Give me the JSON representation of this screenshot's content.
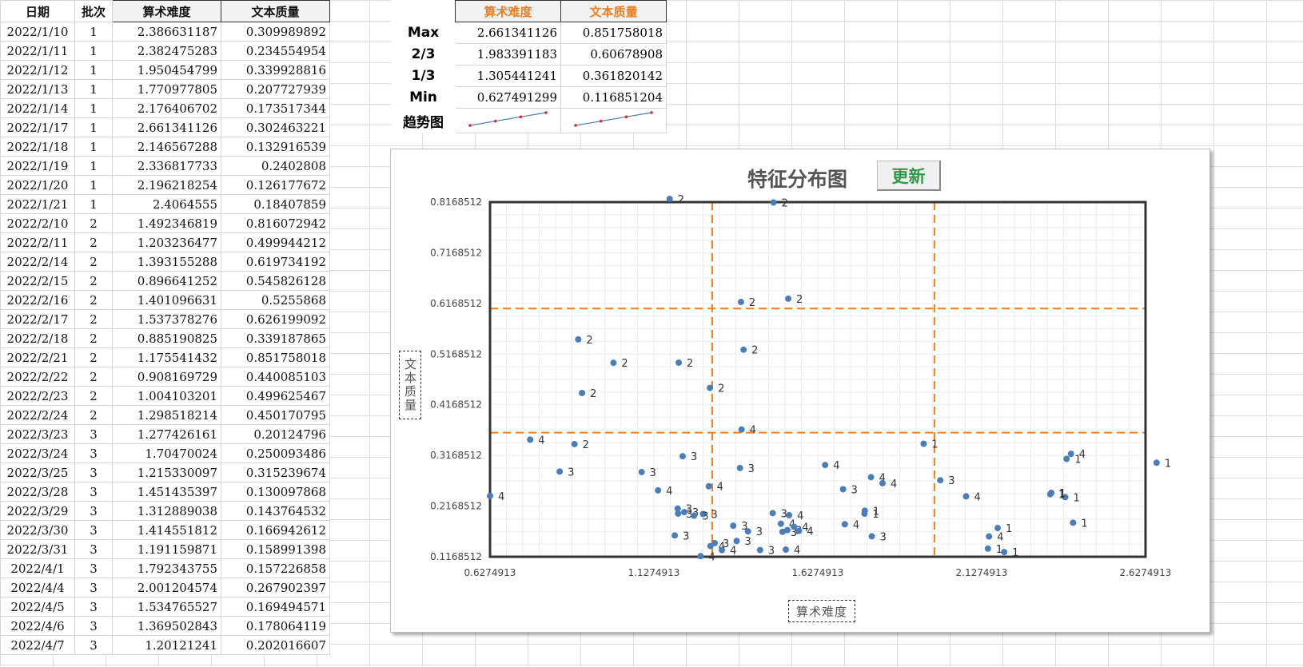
{
  "table": {
    "headers": [
      "日期",
      "批次",
      "算术难度",
      "文本质量"
    ],
    "rows": [
      [
        "2022/1/10",
        "1",
        "2.386631187",
        "0.309989892"
      ],
      [
        "2022/1/11",
        "1",
        "2.382475283",
        "0.234554954"
      ],
      [
        "2022/1/12",
        "1",
        "1.950454799",
        "0.339928816"
      ],
      [
        "2022/1/13",
        "1",
        "1.770977805",
        "0.207727939"
      ],
      [
        "2022/1/14",
        "1",
        "2.176406702",
        "0.173517344"
      ],
      [
        "2022/1/17",
        "1",
        "2.661341126",
        "0.302463221"
      ],
      [
        "2022/1/18",
        "1",
        "2.146567288",
        "0.132916539"
      ],
      [
        "2022/1/19",
        "1",
        "2.336817733",
        "0.2402808"
      ],
      [
        "2022/1/20",
        "1",
        "2.196218254",
        "0.126177672"
      ],
      [
        "2022/1/21",
        "1",
        "2.4064555",
        "0.18407859"
      ],
      [
        "2022/2/10",
        "2",
        "1.492346819",
        "0.816072942"
      ],
      [
        "2022/2/11",
        "2",
        "1.203236477",
        "0.499944212"
      ],
      [
        "2022/2/14",
        "2",
        "1.393155288",
        "0.619734192"
      ],
      [
        "2022/2/15",
        "2",
        "0.896641252",
        "0.545826128"
      ],
      [
        "2022/2/16",
        "2",
        "1.401096631",
        "0.5255868"
      ],
      [
        "2022/2/17",
        "2",
        "1.537378276",
        "0.626199092"
      ],
      [
        "2022/2/18",
        "2",
        "0.885190825",
        "0.339187865"
      ],
      [
        "2022/2/21",
        "2",
        "1.175541432",
        "0.851758018"
      ],
      [
        "2022/2/22",
        "2",
        "0.908169729",
        "0.440085103"
      ],
      [
        "2022/2/23",
        "2",
        "1.004103201",
        "0.499625467"
      ],
      [
        "2022/2/24",
        "2",
        "1.298518214",
        "0.450170795"
      ],
      [
        "2022/3/23",
        "3",
        "1.277426161",
        "0.20124796"
      ],
      [
        "2022/3/24",
        "3",
        "1.70470024",
        "0.250093486"
      ],
      [
        "2022/3/25",
        "3",
        "1.215330097",
        "0.315239674"
      ],
      [
        "2022/3/28",
        "3",
        "1.451435397",
        "0.130097868"
      ],
      [
        "2022/3/29",
        "3",
        "1.312889038",
        "0.143764532"
      ],
      [
        "2022/3/30",
        "3",
        "1.414551812",
        "0.166942612"
      ],
      [
        "2022/3/31",
        "3",
        "1.191159871",
        "0.158991398"
      ],
      [
        "2022/4/1",
        "3",
        "1.792343755",
        "0.157226858"
      ],
      [
        "2022/4/4",
        "3",
        "2.001204574",
        "0.267902397"
      ],
      [
        "2022/4/5",
        "3",
        "1.534765527",
        "0.169494571"
      ],
      [
        "2022/4/6",
        "3",
        "1.369502843",
        "0.178064119"
      ],
      [
        "2022/4/7",
        "3",
        "1.20121241",
        "0.202016607"
      ]
    ]
  },
  "stats": {
    "headers": [
      "算术难度",
      "文本质量"
    ],
    "rows": [
      {
        "label": "Max",
        "a": "2.661341126",
        "b": "0.851758018"
      },
      {
        "label": "2/3",
        "a": "1.983391183",
        "b": "0.60678908"
      },
      {
        "label": "1/3",
        "a": "1.305441241",
        "b": "0.361820142"
      },
      {
        "label": "Min",
        "a": "0.627491299",
        "b": "0.116851204"
      }
    ],
    "trend_label": "趋势图",
    "trend_a": [
      0.627491299,
      1.305441241,
      1.983391183,
      2.661341126
    ],
    "trend_b": [
      0.116851204,
      0.361820142,
      0.60678908,
      0.851758018
    ]
  },
  "chart": {
    "title": "特征分布图",
    "update_button": "更新",
    "xlabel": "算术难度",
    "ylabel": "文本质量"
  },
  "colors": {
    "point": "#4a7ebb",
    "threshold": "#ee7f1c",
    "header_orange": "#ee7f1c",
    "update_green": "#2e9a4b"
  },
  "chart_data": {
    "type": "scatter",
    "title": "特征分布图",
    "xlabel": "算术难度",
    "ylabel": "文本质量",
    "xlim": [
      0.6274913,
      2.6274913
    ],
    "ylim": [
      0.1168512,
      0.8168512
    ],
    "x_ticks": [
      "0.6274913",
      "1.1274913",
      "1.6274913",
      "2.1274913",
      "2.6274913"
    ],
    "y_ticks": [
      "0.1168512",
      "0.2168512",
      "0.3168512",
      "0.4168512",
      "0.5168512",
      "0.6168512",
      "0.7168512",
      "0.8168512"
    ],
    "x_thresholds": [
      1.305441241,
      1.983391183
    ],
    "y_thresholds": [
      0.361820142,
      0.60678908
    ],
    "grid": true,
    "points": [
      {
        "x": 2.386631187,
        "y": 0.309989892,
        "label": "1"
      },
      {
        "x": 2.382475283,
        "y": 0.234554954,
        "label": "1"
      },
      {
        "x": 1.950454799,
        "y": 0.339928816,
        "label": "1"
      },
      {
        "x": 1.770977805,
        "y": 0.207727939,
        "label": "1"
      },
      {
        "x": 2.176406702,
        "y": 0.173517344,
        "label": "1"
      },
      {
        "x": 2.661341126,
        "y": 0.302463221,
        "label": "1"
      },
      {
        "x": 2.146567288,
        "y": 0.132916539,
        "label": "1"
      },
      {
        "x": 2.336817733,
        "y": 0.2402808,
        "label": "1"
      },
      {
        "x": 2.196218254,
        "y": 0.126177672,
        "label": "1"
      },
      {
        "x": 2.4064555,
        "y": 0.18407859,
        "label": "1"
      },
      {
        "x": 1.492346819,
        "y": 0.816072942,
        "label": "2"
      },
      {
        "x": 1.203236477,
        "y": 0.499944212,
        "label": "2"
      },
      {
        "x": 1.393155288,
        "y": 0.619734192,
        "label": "2"
      },
      {
        "x": 0.896641252,
        "y": 0.545826128,
        "label": "2"
      },
      {
        "x": 1.401096631,
        "y": 0.5255868,
        "label": "2"
      },
      {
        "x": 1.537378276,
        "y": 0.626199092,
        "label": "2"
      },
      {
        "x": 0.885190825,
        "y": 0.339187865,
        "label": "2"
      },
      {
        "x": 1.175541432,
        "y": 0.851758018,
        "label": "2"
      },
      {
        "x": 0.908169729,
        "y": 0.440085103,
        "label": "2"
      },
      {
        "x": 1.004103201,
        "y": 0.499625467,
        "label": "2"
      },
      {
        "x": 1.298518214,
        "y": 0.450170795,
        "label": "2"
      },
      {
        "x": 1.277426161,
        "y": 0.20124796,
        "label": "3"
      },
      {
        "x": 1.70470024,
        "y": 0.250093486,
        "label": "3"
      },
      {
        "x": 1.215330097,
        "y": 0.315239674,
        "label": "3"
      },
      {
        "x": 1.451435397,
        "y": 0.130097868,
        "label": "3"
      },
      {
        "x": 1.312889038,
        "y": 0.143764532,
        "label": "3"
      },
      {
        "x": 1.414551812,
        "y": 0.166942612,
        "label": "3"
      },
      {
        "x": 1.191159871,
        "y": 0.158991398,
        "label": "3"
      },
      {
        "x": 1.792343755,
        "y": 0.157226858,
        "label": "3"
      },
      {
        "x": 2.001204574,
        "y": 0.267902397,
        "label": "3"
      },
      {
        "x": 1.534765527,
        "y": 0.169494571,
        "label": "3"
      },
      {
        "x": 1.369502843,
        "y": 0.178064119,
        "label": "3"
      },
      {
        "x": 1.20121241,
        "y": 0.202016607,
        "label": "3"
      },
      {
        "x": 0.627491299,
        "y": 0.237,
        "label": "4"
      },
      {
        "x": 0.75,
        "y": 0.348,
        "label": "4"
      },
      {
        "x": 1.14,
        "y": 0.248,
        "label": "4"
      },
      {
        "x": 1.2,
        "y": 0.212,
        "label": "3"
      },
      {
        "x": 1.22,
        "y": 0.205,
        "label": "3"
      },
      {
        "x": 1.25,
        "y": 0.198,
        "label": "3"
      },
      {
        "x": 1.09,
        "y": 0.284,
        "label": "3"
      },
      {
        "x": 0.84,
        "y": 0.285,
        "label": "3"
      },
      {
        "x": 1.295,
        "y": 0.256,
        "label": "4"
      },
      {
        "x": 1.395,
        "y": 0.368,
        "label": "4"
      },
      {
        "x": 1.39,
        "y": 0.292,
        "label": "3"
      },
      {
        "x": 1.38,
        "y": 0.148,
        "label": "3"
      },
      {
        "x": 1.3,
        "y": 0.138,
        "label": "4"
      },
      {
        "x": 1.335,
        "y": 0.13,
        "label": "4"
      },
      {
        "x": 1.27,
        "y": 0.118,
        "label": "4"
      },
      {
        "x": 1.49,
        "y": 0.203,
        "label": "3"
      },
      {
        "x": 1.515,
        "y": 0.182,
        "label": "4"
      },
      {
        "x": 1.52,
        "y": 0.166,
        "label": "3"
      },
      {
        "x": 1.54,
        "y": 0.199,
        "label": "4"
      },
      {
        "x": 1.555,
        "y": 0.176,
        "label": "4"
      },
      {
        "x": 1.57,
        "y": 0.168,
        "label": "4"
      },
      {
        "x": 1.53,
        "y": 0.131,
        "label": "4"
      },
      {
        "x": 1.65,
        "y": 0.298,
        "label": "4"
      },
      {
        "x": 1.71,
        "y": 0.181,
        "label": "4"
      },
      {
        "x": 1.79,
        "y": 0.274,
        "label": "4"
      },
      {
        "x": 1.825,
        "y": 0.262,
        "label": "4"
      },
      {
        "x": 1.77,
        "y": 0.202,
        "label": "1"
      },
      {
        "x": 2.08,
        "y": 0.236,
        "label": "4"
      },
      {
        "x": 2.15,
        "y": 0.157,
        "label": "4"
      },
      {
        "x": 2.4,
        "y": 0.32,
        "label": "4"
      },
      {
        "x": 2.34,
        "y": 0.243,
        "label": "1"
      }
    ]
  }
}
